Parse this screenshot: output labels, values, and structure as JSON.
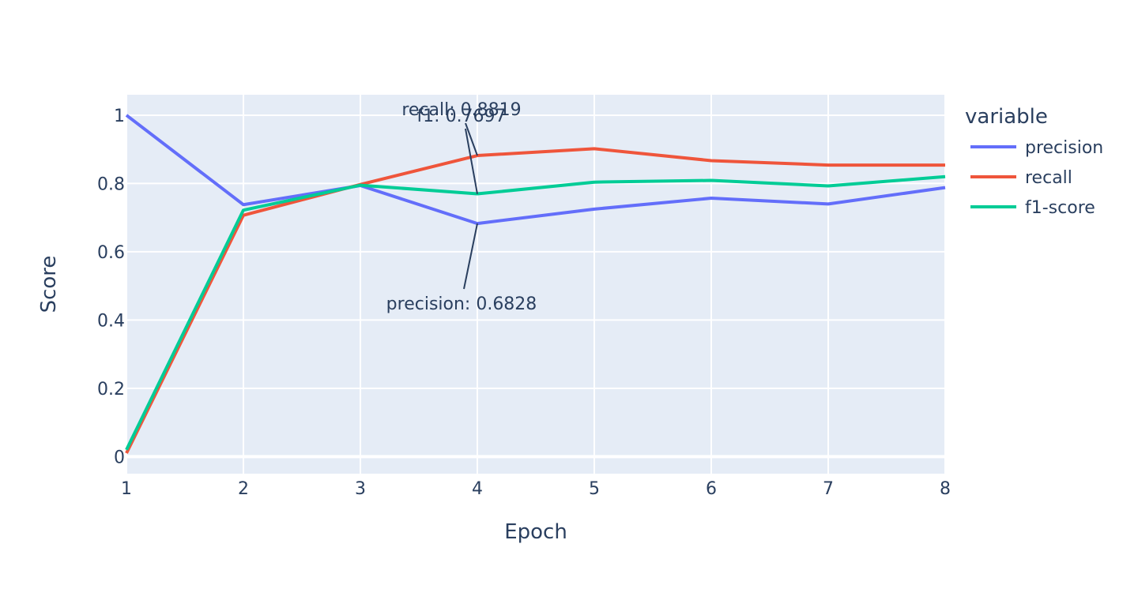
{
  "chart_data": {
    "type": "line",
    "xlabel": "Epoch",
    "ylabel": "Score",
    "x": [
      1,
      2,
      3,
      4,
      5,
      6,
      7,
      8
    ],
    "xlim": [
      1,
      8
    ],
    "ylim": [
      -0.05,
      1.06
    ],
    "xticks": [
      1,
      2,
      3,
      4,
      5,
      6,
      7,
      8
    ],
    "yticks": [
      0,
      0.2,
      0.4,
      0.6,
      0.8,
      1
    ],
    "ytick_labels": [
      "0",
      "0.2",
      "0.4",
      "0.6",
      "0.8",
      "1"
    ],
    "grid": true,
    "legend": {
      "title": "variable",
      "position": "right"
    },
    "series": [
      {
        "name": "precision",
        "color": "#636efa",
        "values": [
          1.0,
          0.738,
          0.794,
          0.6828,
          0.725,
          0.757,
          0.74,
          0.788
        ]
      },
      {
        "name": "recall",
        "color": "#ef553b",
        "values": [
          0.01,
          0.707,
          0.797,
          0.8819,
          0.902,
          0.867,
          0.854,
          0.854
        ]
      },
      {
        "name": "f1-score",
        "color": "#00cc96",
        "values": [
          0.02,
          0.722,
          0.795,
          0.7697,
          0.804,
          0.809,
          0.793,
          0.82
        ]
      }
    ],
    "annotations": [
      {
        "text": "recall: 0.8819",
        "x": 4,
        "y": 0.8819
      },
      {
        "text": "f1: 0.7697",
        "x": 4,
        "y": 0.7697
      },
      {
        "text": "precision: 0.6828",
        "x": 4,
        "y": 0.6828
      }
    ]
  }
}
